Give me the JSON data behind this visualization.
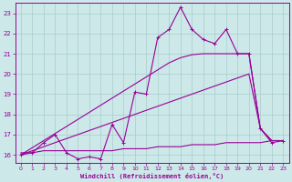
{
  "xlabel": "Windchill (Refroidissement éolien,°C)",
  "bg_color": "#cce8e8",
  "line_color": "#990099",
  "grid_color": "#aacccc",
  "x_hours": [
    0,
    1,
    2,
    3,
    4,
    5,
    6,
    7,
    8,
    9,
    10,
    11,
    12,
    13,
    14,
    15,
    16,
    17,
    18,
    19,
    20,
    21,
    22,
    23
  ],
  "jagged_y": [
    16.0,
    16.1,
    16.6,
    17.0,
    16.1,
    15.8,
    15.9,
    15.8,
    17.5,
    16.6,
    19.1,
    19.0,
    21.8,
    22.2,
    23.3,
    22.2,
    21.7,
    21.5,
    22.2,
    21.0,
    21.0,
    17.3,
    16.6,
    16.7
  ],
  "trend_upper": [
    16.0,
    16.35,
    16.7,
    17.05,
    17.4,
    17.75,
    18.1,
    18.45,
    18.8,
    19.15,
    19.5,
    19.85,
    20.2,
    20.55,
    20.8,
    20.95,
    21.0,
    21.0,
    21.0,
    21.0,
    21.0,
    17.3,
    16.7,
    16.7
  ],
  "trend_lower": [
    16.0,
    16.2,
    16.4,
    16.6,
    16.8,
    17.0,
    17.2,
    17.4,
    17.6,
    17.8,
    18.0,
    18.2,
    18.4,
    18.6,
    18.8,
    19.0,
    19.2,
    19.4,
    19.6,
    19.8,
    20.0,
    17.3,
    16.7,
    16.7
  ],
  "flat_line": [
    16.1,
    16.1,
    16.2,
    16.2,
    16.2,
    16.2,
    16.2,
    16.2,
    16.2,
    16.3,
    16.3,
    16.3,
    16.4,
    16.4,
    16.4,
    16.5,
    16.5,
    16.5,
    16.6,
    16.6,
    16.6,
    16.6,
    16.7,
    16.7
  ],
  "ylim": [
    15.6,
    23.5
  ],
  "xlim": [
    -0.5,
    23.5
  ],
  "yticks": [
    16,
    17,
    18,
    19,
    20,
    21,
    22,
    23
  ],
  "xticks": [
    0,
    1,
    2,
    3,
    4,
    5,
    6,
    7,
    8,
    9,
    10,
    11,
    12,
    13,
    14,
    15,
    16,
    17,
    18,
    19,
    20,
    21,
    22,
    23
  ]
}
